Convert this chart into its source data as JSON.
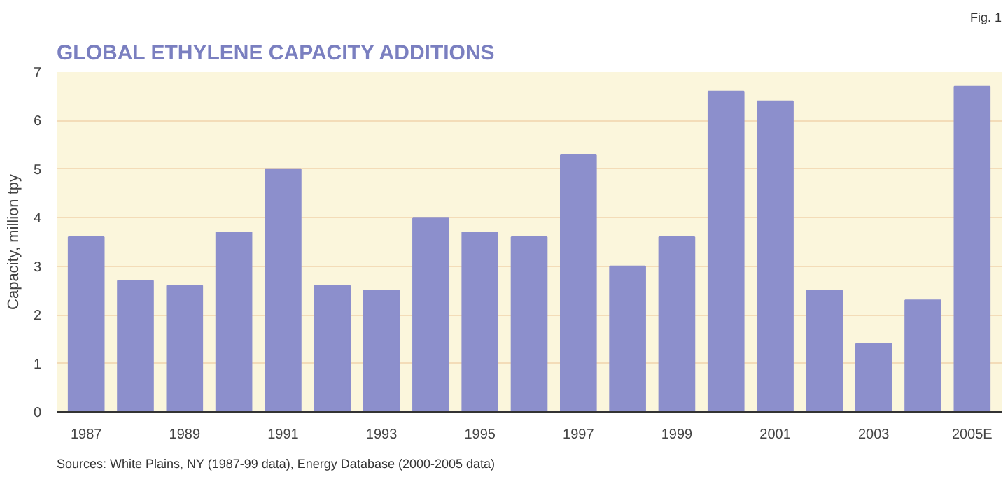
{
  "chart_data": {
    "type": "bar",
    "title": "GLOBAL ETHYLENE CAPACITY ADDITIONS",
    "ylabel": "Capacity, million tpy",
    "categories": [
      "1987",
      null,
      "1989",
      null,
      "1991",
      null,
      "1993",
      null,
      "1995",
      null,
      "1997",
      null,
      "1999",
      null,
      "2001",
      null,
      "2003",
      null,
      "2005E"
    ],
    "values": [
      3.6,
      2.7,
      2.6,
      3.7,
      5.0,
      2.6,
      2.5,
      4.0,
      3.7,
      3.6,
      5.3,
      3.0,
      3.6,
      6.6,
      6.4,
      2.5,
      1.4,
      2.3,
      6.7
    ],
    "color": "#8c8fcc",
    "ylim": [
      0,
      7
    ],
    "yticks": [
      0,
      1,
      2,
      3,
      4,
      5,
      6,
      7
    ],
    "grid": "y",
    "annotations": [
      "Fig. 1",
      "Sources: White Plains, NY (1987-99 data), Energy Database (2000-2005 data)"
    ]
  }
}
